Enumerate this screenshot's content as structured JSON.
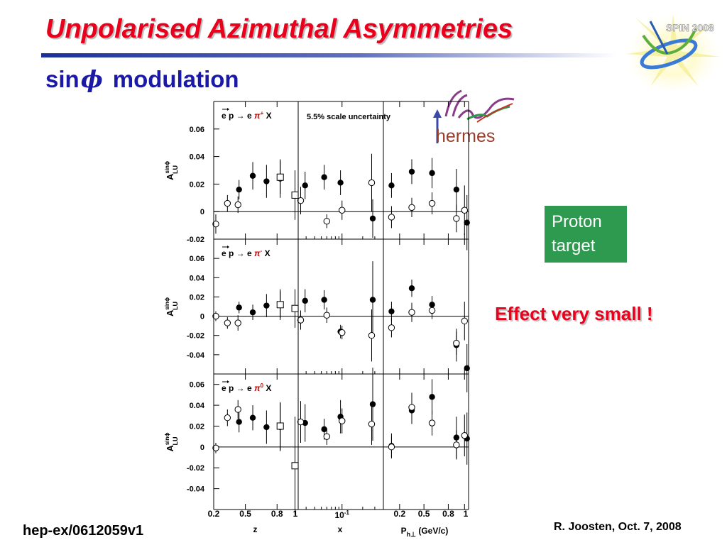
{
  "slide": {
    "title": "Unpolarised Azimuthal Asymmetries",
    "subtitle_prefix": "sin",
    "subtitle_symbol": "ϕ",
    "subtitle_suffix": "modulation",
    "proton_box": [
      "Proton",
      "target"
    ],
    "effect_note": "Effect very small !",
    "reference_left": "hep-ex/0612059v1",
    "reference_right": "R. Joosten, Oct. 7, 2008",
    "logo_spin_text": "SPIN 2008",
    "logo_hermes_text": "hermes",
    "colors": {
      "title": "#e8001c",
      "subtitle": "#1a1aa6",
      "box": "#2e9a4f",
      "rule": "#1b2f9c"
    }
  },
  "chart_data": {
    "type": "scatter",
    "scale_note": "5.5% scale uncertainty",
    "ylabel_main": "A",
    "ylabel_sup": "sinϕ",
    "ylabel_sub": "LU",
    "columns": [
      {
        "name": "z",
        "xlabel": "z",
        "scale": "linear",
        "xlim": [
          0.2,
          1.0
        ],
        "ticks": [
          0.2,
          0.5,
          0.8,
          1.0
        ],
        "tick_labels": [
          "0.2",
          "0.5",
          "0.8",
          "1"
        ]
      },
      {
        "name": "x",
        "xlabel": "x",
        "scale": "log",
        "xlim": [
          0.023,
          0.4
        ],
        "ticks": [
          0.1
        ],
        "tick_labels": [
          "10-1"
        ]
      },
      {
        "name": "Ph",
        "xlabel": "Ph⊥ (GeV/c)",
        "scale": "linear",
        "xlim": [
          0.0,
          1.05
        ],
        "ticks": [
          0.2,
          0.5,
          0.8,
          1.0
        ],
        "tick_labels": [
          "0.2",
          "0.5",
          "0.8",
          "1"
        ]
      }
    ],
    "rows": [
      {
        "reaction": "e p → e π+ X",
        "ylim": [
          -0.02,
          0.08
        ],
        "yticks": [
          -0.02,
          0,
          0.02,
          0.04,
          0.06
        ],
        "ytick_labels": [
          "-0.02",
          "0",
          "0.02",
          "0.04",
          "0.06"
        ],
        "panels": [
          {
            "filled": {
              "x": [
                0.44,
                0.57,
                0.7,
                0.83
              ],
              "y": [
                0.016,
                0.026,
                0.022,
                0.024
              ],
              "err": [
                0.007,
                0.01,
                0.012,
                0.014
              ]
            },
            "open": {
              "x": [
                0.22,
                0.33,
                0.43
              ],
              "y": [
                -0.009,
                0.006,
                0.005
              ],
              "err": [
                0.007,
                0.006,
                0.006
              ]
            },
            "square": {
              "x": [
                0.83,
                0.97
              ],
              "y": [
                0.025,
                0.012
              ],
              "err": [
                0.012,
                0.018
              ]
            }
          },
          {
            "filled": {
              "x": [
                0.029,
                0.055,
                0.095,
                0.28
              ],
              "y": [
                0.019,
                0.025,
                0.021,
                -0.005
              ],
              "err": [
                0.01,
                0.009,
                0.009,
                0.014
              ]
            },
            "open": {
              "x": [
                0.025,
                0.06,
                0.1,
                0.27
              ],
              "y": [
                0.008,
                -0.007,
                0.001,
                0.021
              ],
              "err": [
                0.01,
                0.005,
                0.007,
                0.021
              ]
            }
          },
          {
            "filled": {
              "x": [
                0.1,
                0.35,
                0.6,
                0.9,
                1.03
              ],
              "y": [
                0.019,
                0.029,
                0.028,
                0.016,
                -0.008
              ],
              "err": [
                0.009,
                0.009,
                0.011,
                0.015,
                0.02
              ]
            },
            "open": {
              "x": [
                0.1,
                0.35,
                0.6,
                0.9,
                1.0
              ],
              "y": [
                -0.004,
                0.003,
                0.006,
                -0.005,
                0.001
              ],
              "err": [
                0.008,
                0.007,
                0.008,
                0.01,
                0.018
              ]
            }
          }
        ]
      },
      {
        "reaction": "e p → e π- X",
        "ylim": [
          -0.06,
          0.08
        ],
        "yticks": [
          -0.04,
          -0.02,
          0,
          0.02,
          0.04,
          0.06
        ],
        "ytick_labels": [
          "-0.04",
          "-0.02",
          "0",
          "0.02",
          "0.04",
          "0.06"
        ],
        "panels": [
          {
            "filled": {
              "x": [
                0.44,
                0.57,
                0.7,
                0.83
              ],
              "y": [
                0.009,
                0.004,
                0.011,
                0.012
              ],
              "err": [
                0.006,
                0.008,
                0.012,
                0.016
              ]
            },
            "open": {
              "x": [
                0.22,
                0.33,
                0.43
              ],
              "y": [
                0.0,
                -0.007,
                -0.007
              ],
              "err": [
                0.005,
                0.006,
                0.008
              ]
            },
            "square": {
              "x": [
                0.83,
                0.97
              ],
              "y": [
                0.012,
                0.008
              ],
              "err": [
                0.014,
                0.02
              ]
            }
          },
          {
            "filled": {
              "x": [
                0.029,
                0.055,
                0.095,
                0.28
              ],
              "y": [
                0.016,
                0.017,
                -0.016,
                0.017
              ],
              "err": [
                0.012,
                0.01,
                0.007,
                0.04
              ]
            },
            "open": {
              "x": [
                0.025,
                0.06,
                0.1,
                0.27
              ],
              "y": [
                -0.004,
                0.001,
                -0.017,
                -0.02
              ],
              "err": [
                0.01,
                0.008,
                0.007,
                0.027
              ]
            }
          },
          {
            "filled": {
              "x": [
                0.1,
                0.35,
                0.6,
                0.9,
                1.03
              ],
              "y": [
                0.005,
                0.029,
                0.012,
                -0.03,
                -0.054
              ],
              "err": [
                0.01,
                0.009,
                0.009,
                0.017,
                0.025
              ]
            },
            "open": {
              "x": [
                0.1,
                0.35,
                0.6,
                0.9,
                1.0
              ],
              "y": [
                -0.012,
                0.004,
                0.006,
                -0.028,
                -0.005
              ],
              "err": [
                0.01,
                0.01,
                0.009,
                0.012,
                0.02
              ]
            }
          }
        ]
      },
      {
        "reaction": "e p → e π0 X",
        "ylim": [
          -0.06,
          0.07
        ],
        "yticks": [
          -0.04,
          -0.02,
          0,
          0.02,
          0.04,
          0.06
        ],
        "ytick_labels": [
          "-0.04",
          "-0.02",
          "0",
          "0.02",
          "0.04",
          "0.06"
        ],
        "panels": [
          {
            "filled": {
              "x": [
                0.44,
                0.57,
                0.7,
                0.83
              ],
              "y": [
                0.024,
                0.028,
                0.019,
                0.019
              ],
              "err": [
                0.01,
                0.012,
                0.016,
                0.023
              ]
            },
            "open": {
              "x": [
                0.22,
                0.33,
                0.43
              ],
              "y": [
                -0.001,
                0.028,
                0.036
              ],
              "err": [
                0.005,
                0.008,
                0.009
              ]
            },
            "square": {
              "x": [
                0.83,
                0.97
              ],
              "y": [
                0.02,
                -0.018
              ],
              "err": [
                0.023,
                0.047
              ]
            }
          },
          {
            "filled": {
              "x": [
                0.029,
                0.055,
                0.095,
                0.28
              ],
              "y": [
                0.023,
                0.017,
                0.029,
                0.041
              ],
              "err": [
                0.018,
                0.01,
                0.016,
                0.035
              ]
            },
            "open": {
              "x": [
                0.025,
                0.06,
                0.1,
                0.27
              ],
              "y": [
                0.024,
                0.01,
                0.025,
                0.022
              ],
              "err": [
                0.02,
                0.008,
                0.012,
                0.02
              ]
            }
          },
          {
            "filled": {
              "x": [
                0.1,
                0.35,
                0.6,
                0.9,
                1.03
              ],
              "y": [
                0.001,
                0.035,
                0.048,
                0.009,
                0.008
              ],
              "err": [
                0.012,
                0.013,
                0.017,
                0.02,
                0.025
              ]
            },
            "open": {
              "x": [
                0.1,
                0.35,
                0.6,
                0.9,
                1.0
              ],
              "y": [
                0.0,
                0.038,
                0.023,
                0.002,
                0.011
              ],
              "err": [
                0.01,
                0.014,
                0.012,
                0.014,
                0.02
              ]
            }
          }
        ]
      }
    ]
  }
}
